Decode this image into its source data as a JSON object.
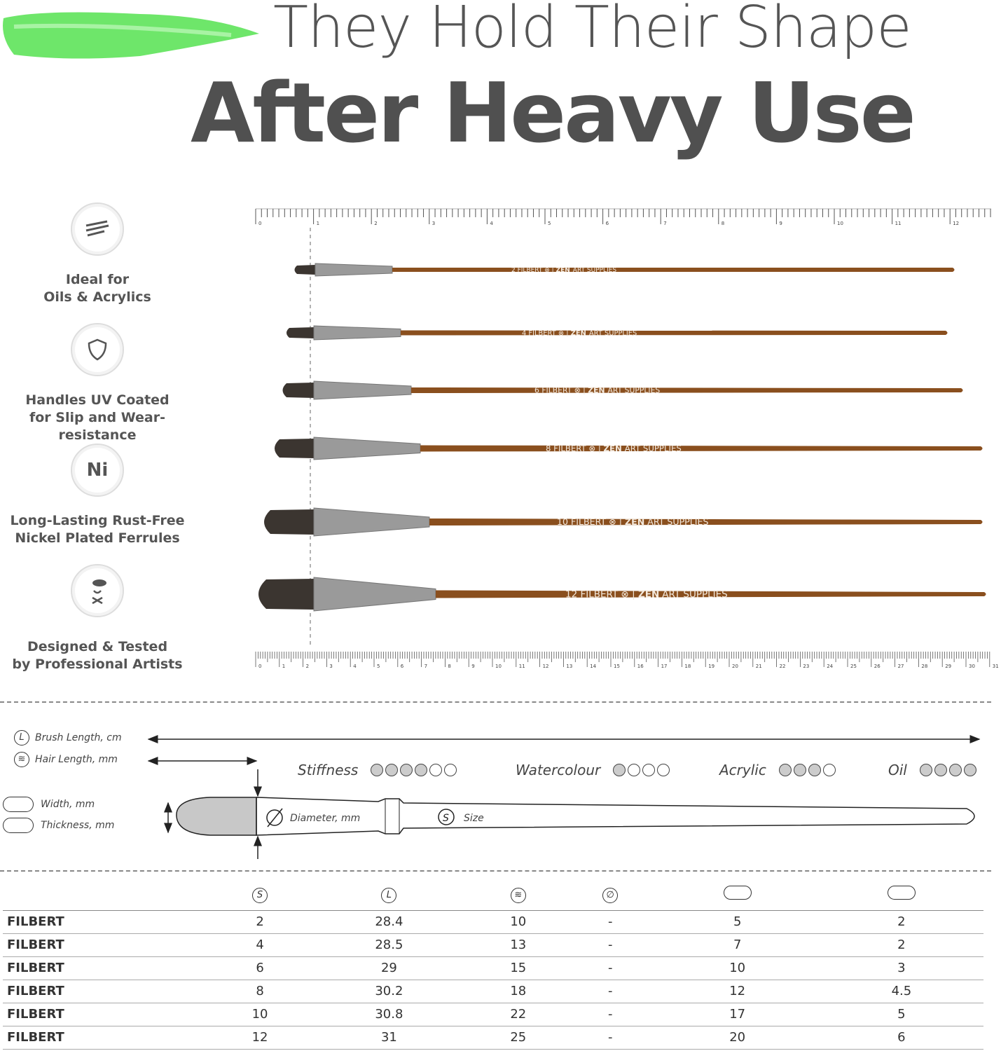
{
  "title_line1": "They Hold Their Shape",
  "title_line2": "After Heavy Use",
  "colors": {
    "accent_green": "#5ee35a",
    "handle": "#8a4f1e",
    "text": "#4a4a4a"
  },
  "features": [
    {
      "icon": "brush-strokes-icon",
      "label1": "Ideal for",
      "label2": "Oils & Acrylics"
    },
    {
      "icon": "shield-icon",
      "label1": "Handles UV Coated",
      "label2": "for Slip and Wear-resistance"
    },
    {
      "icon": "nickel-icon",
      "icon_text": "Ni",
      "label1": "Long-Lasting Rust-Free",
      "label2": "Nickel Plated Ferrules"
    },
    {
      "icon": "artist-icon",
      "label1": "Designed & Tested",
      "label2": "by Professional Artists"
    }
  ],
  "ruler_top": {
    "unit": "inch",
    "max": 12
  },
  "ruler_bottom": {
    "unit": "cm",
    "max": 31
  },
  "brush_imprint": {
    "type": "FILBERT",
    "brand_bold": "ZEN",
    "brand_rest": "ART SUPPLIES"
  },
  "brushes": [
    "2",
    "4",
    "6",
    "8",
    "10",
    "12"
  ],
  "legend": {
    "brush_length": "Brush Length, cm",
    "hair_length": "Hair Length, mm",
    "width": "Width, mm",
    "thickness": "Thickness, mm",
    "diameter": "Diameter, mm",
    "size": "Size"
  },
  "ratings": [
    {
      "label": "Stiffness",
      "filled": 4,
      "total": 6
    },
    {
      "label": "Watercolour",
      "filled": 1,
      "total": 4
    },
    {
      "label": "Acrylic",
      "filled": 3,
      "total": 4
    },
    {
      "label": "Oil",
      "filled": 4,
      "total": 4
    }
  ],
  "table": {
    "header_icons": [
      "size-icon",
      "brush-length-icon",
      "hair-length-icon",
      "diameter-icon",
      "width-icon",
      "thickness-icon"
    ],
    "rows": [
      [
        "FILBERT",
        "2",
        "28.4",
        "10",
        "-",
        "5",
        "2"
      ],
      [
        "FILBERT",
        "4",
        "28.5",
        "13",
        "-",
        "7",
        "2"
      ],
      [
        "FILBERT",
        "6",
        "29",
        "15",
        "-",
        "10",
        "3"
      ],
      [
        "FILBERT",
        "8",
        "30.2",
        "18",
        "-",
        "12",
        "4.5"
      ],
      [
        "FILBERT",
        "10",
        "30.8",
        "22",
        "-",
        "17",
        "5"
      ],
      [
        "FILBERT",
        "12",
        "31",
        "25",
        "-",
        "20",
        "6"
      ]
    ]
  }
}
